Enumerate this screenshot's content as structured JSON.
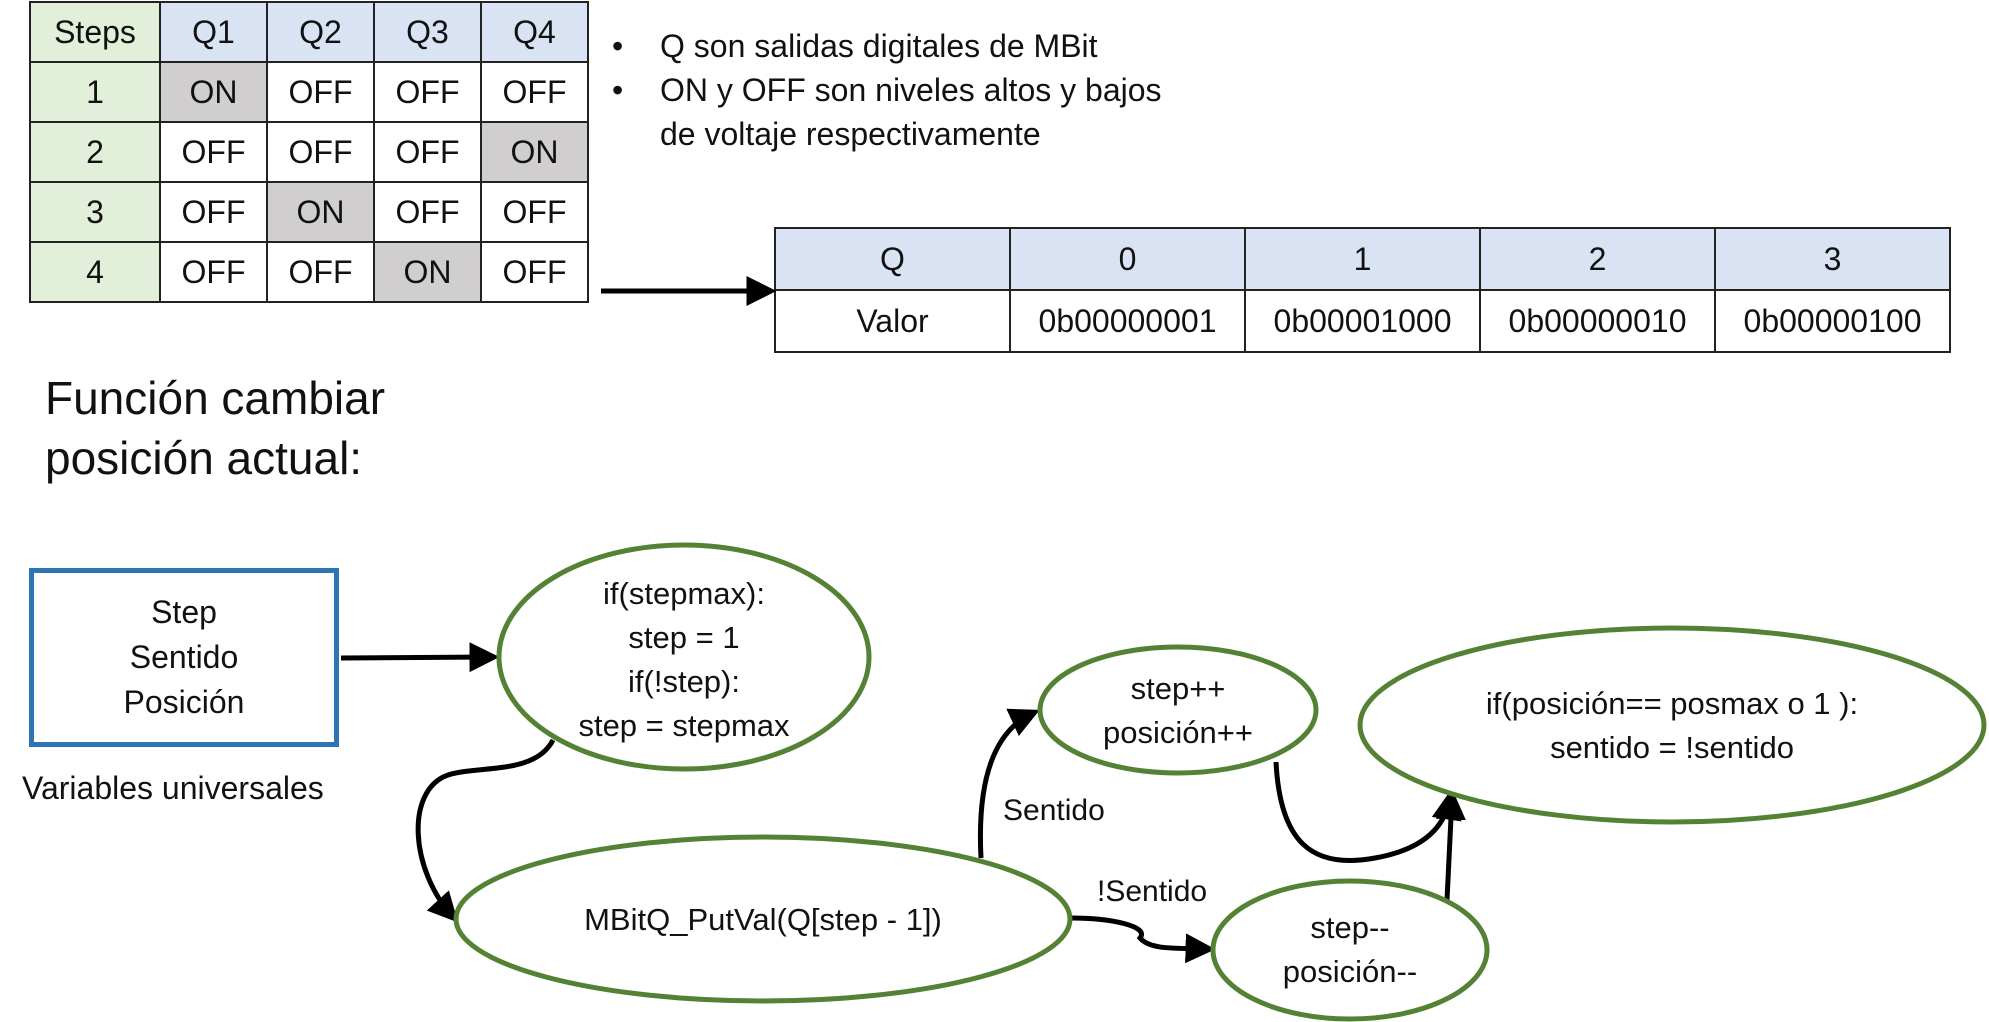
{
  "steps_table": {
    "headers": [
      "Steps",
      "Q1",
      "Q2",
      "Q3",
      "Q4"
    ],
    "rows": [
      {
        "step": "1",
        "q": [
          "ON",
          "OFF",
          "OFF",
          "OFF"
        ]
      },
      {
        "step": "2",
        "q": [
          "OFF",
          "OFF",
          "OFF",
          "ON"
        ]
      },
      {
        "step": "3",
        "q": [
          "OFF",
          "ON",
          "OFF",
          "OFF"
        ]
      },
      {
        "step": "4",
        "q": [
          "OFF",
          "OFF",
          "ON",
          "OFF"
        ]
      }
    ]
  },
  "bullets": [
    "Q son salidas digitales de MBit",
    "ON y OFF son niveles altos y bajos de voltaje respectivamente"
  ],
  "value_table": {
    "header_label": "Q",
    "indices": [
      "0",
      "1",
      "2",
      "3"
    ],
    "row_label": "Valor",
    "values": [
      "0b00000001",
      "0b00001000",
      "0b00000010",
      "0b00000100"
    ]
  },
  "function_title": "Función cambiar posición actual:",
  "variables_box": {
    "lines": [
      "Step",
      "Sentido",
      "Posición"
    ],
    "caption": "Variables universales"
  },
  "flow": {
    "check_node": [
      "if(stepmax):",
      "step = 1",
      "if(!step):",
      "step = stepmax"
    ],
    "putval_node": [
      "MBitQ_PutVal(Q[step - 1])"
    ],
    "increment_node": [
      "step++",
      "posición++"
    ],
    "decrement_node": [
      "step--",
      "posición--"
    ],
    "direction_node": [
      "if(posición== posmax o 1 ):",
      "sentido = !sentido"
    ],
    "label_sentido": "Sentido",
    "label_not_sentido": "!Sentido"
  }
}
